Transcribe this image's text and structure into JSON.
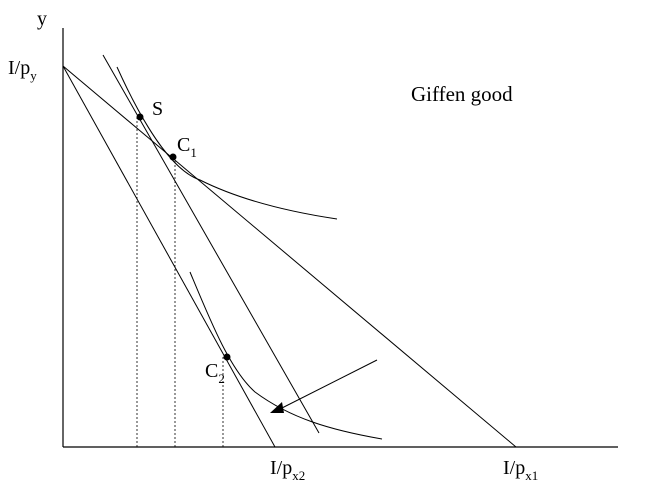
{
  "axes": {
    "y_label": "y",
    "y_intercept_label": {
      "base": "I/p",
      "sub": "y"
    },
    "x_intercept_labels": [
      {
        "base": "I/p",
        "sub": "x2"
      },
      {
        "base": "I/p",
        "sub": "x1"
      }
    ]
  },
  "title": "Giffen good",
  "points": [
    {
      "base": "S",
      "sub": ""
    },
    {
      "base": "C",
      "sub": "1"
    },
    {
      "base": "C",
      "sub": "2"
    }
  ],
  "colors": {
    "ink": "#000000",
    "background": "#ffffff"
  }
}
